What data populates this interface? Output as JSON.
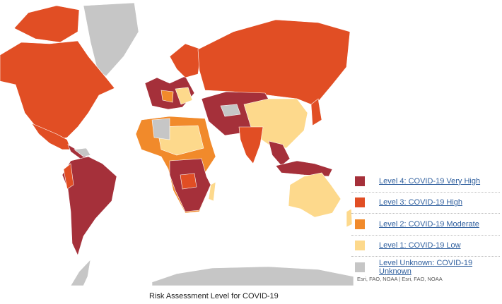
{
  "legend": {
    "items": [
      {
        "label": "Level 4: COVID-19 Very High",
        "color": "#a5303a"
      },
      {
        "label": "Level 3: COVID-19 High",
        "color": "#e14e24"
      },
      {
        "label": "Level 2: COVID-19 Moderate",
        "color": "#f18a2b"
      },
      {
        "label": "Level 1: COVID-19 Low",
        "color": "#fdd98c"
      },
      {
        "label": "Level Unknown: COVID-19 Unknown",
        "color": "#c6c6c6"
      }
    ]
  },
  "attribution": "Esri, FAO, NOAA | Esri, FAO, NOAA",
  "caption": "Risk Assessment Level for COVID-19"
}
